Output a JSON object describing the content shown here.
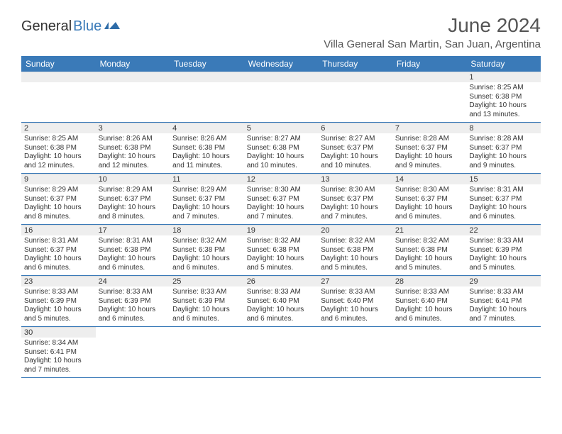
{
  "brand": {
    "general": "General",
    "blue": "Blue"
  },
  "title": "June 2024",
  "location": "Villa General San Martin, San Juan, Argentina",
  "colors": {
    "header_bg": "#3a7ab8",
    "header_fg": "#ffffff",
    "daynum_bg": "#eeeeee",
    "border": "#3a7ab8",
    "text": "#333333"
  },
  "day_labels": [
    "Sunday",
    "Monday",
    "Tuesday",
    "Wednesday",
    "Thursday",
    "Friday",
    "Saturday"
  ],
  "weeks": [
    [
      null,
      null,
      null,
      null,
      null,
      null,
      {
        "n": "1",
        "sr": "Sunrise: 8:25 AM",
        "ss": "Sunset: 6:38 PM",
        "dl": "Daylight: 10 hours and 13 minutes."
      }
    ],
    [
      {
        "n": "2",
        "sr": "Sunrise: 8:25 AM",
        "ss": "Sunset: 6:38 PM",
        "dl": "Daylight: 10 hours and 12 minutes."
      },
      {
        "n": "3",
        "sr": "Sunrise: 8:26 AM",
        "ss": "Sunset: 6:38 PM",
        "dl": "Daylight: 10 hours and 12 minutes."
      },
      {
        "n": "4",
        "sr": "Sunrise: 8:26 AM",
        "ss": "Sunset: 6:38 PM",
        "dl": "Daylight: 10 hours and 11 minutes."
      },
      {
        "n": "5",
        "sr": "Sunrise: 8:27 AM",
        "ss": "Sunset: 6:38 PM",
        "dl": "Daylight: 10 hours and 10 minutes."
      },
      {
        "n": "6",
        "sr": "Sunrise: 8:27 AM",
        "ss": "Sunset: 6:37 PM",
        "dl": "Daylight: 10 hours and 10 minutes."
      },
      {
        "n": "7",
        "sr": "Sunrise: 8:28 AM",
        "ss": "Sunset: 6:37 PM",
        "dl": "Daylight: 10 hours and 9 minutes."
      },
      {
        "n": "8",
        "sr": "Sunrise: 8:28 AM",
        "ss": "Sunset: 6:37 PM",
        "dl": "Daylight: 10 hours and 9 minutes."
      }
    ],
    [
      {
        "n": "9",
        "sr": "Sunrise: 8:29 AM",
        "ss": "Sunset: 6:37 PM",
        "dl": "Daylight: 10 hours and 8 minutes."
      },
      {
        "n": "10",
        "sr": "Sunrise: 8:29 AM",
        "ss": "Sunset: 6:37 PM",
        "dl": "Daylight: 10 hours and 8 minutes."
      },
      {
        "n": "11",
        "sr": "Sunrise: 8:29 AM",
        "ss": "Sunset: 6:37 PM",
        "dl": "Daylight: 10 hours and 7 minutes."
      },
      {
        "n": "12",
        "sr": "Sunrise: 8:30 AM",
        "ss": "Sunset: 6:37 PM",
        "dl": "Daylight: 10 hours and 7 minutes."
      },
      {
        "n": "13",
        "sr": "Sunrise: 8:30 AM",
        "ss": "Sunset: 6:37 PM",
        "dl": "Daylight: 10 hours and 7 minutes."
      },
      {
        "n": "14",
        "sr": "Sunrise: 8:30 AM",
        "ss": "Sunset: 6:37 PM",
        "dl": "Daylight: 10 hours and 6 minutes."
      },
      {
        "n": "15",
        "sr": "Sunrise: 8:31 AM",
        "ss": "Sunset: 6:37 PM",
        "dl": "Daylight: 10 hours and 6 minutes."
      }
    ],
    [
      {
        "n": "16",
        "sr": "Sunrise: 8:31 AM",
        "ss": "Sunset: 6:37 PM",
        "dl": "Daylight: 10 hours and 6 minutes."
      },
      {
        "n": "17",
        "sr": "Sunrise: 8:31 AM",
        "ss": "Sunset: 6:38 PM",
        "dl": "Daylight: 10 hours and 6 minutes."
      },
      {
        "n": "18",
        "sr": "Sunrise: 8:32 AM",
        "ss": "Sunset: 6:38 PM",
        "dl": "Daylight: 10 hours and 6 minutes."
      },
      {
        "n": "19",
        "sr": "Sunrise: 8:32 AM",
        "ss": "Sunset: 6:38 PM",
        "dl": "Daylight: 10 hours and 5 minutes."
      },
      {
        "n": "20",
        "sr": "Sunrise: 8:32 AM",
        "ss": "Sunset: 6:38 PM",
        "dl": "Daylight: 10 hours and 5 minutes."
      },
      {
        "n": "21",
        "sr": "Sunrise: 8:32 AM",
        "ss": "Sunset: 6:38 PM",
        "dl": "Daylight: 10 hours and 5 minutes."
      },
      {
        "n": "22",
        "sr": "Sunrise: 8:33 AM",
        "ss": "Sunset: 6:39 PM",
        "dl": "Daylight: 10 hours and 5 minutes."
      }
    ],
    [
      {
        "n": "23",
        "sr": "Sunrise: 8:33 AM",
        "ss": "Sunset: 6:39 PM",
        "dl": "Daylight: 10 hours and 5 minutes."
      },
      {
        "n": "24",
        "sr": "Sunrise: 8:33 AM",
        "ss": "Sunset: 6:39 PM",
        "dl": "Daylight: 10 hours and 6 minutes."
      },
      {
        "n": "25",
        "sr": "Sunrise: 8:33 AM",
        "ss": "Sunset: 6:39 PM",
        "dl": "Daylight: 10 hours and 6 minutes."
      },
      {
        "n": "26",
        "sr": "Sunrise: 8:33 AM",
        "ss": "Sunset: 6:40 PM",
        "dl": "Daylight: 10 hours and 6 minutes."
      },
      {
        "n": "27",
        "sr": "Sunrise: 8:33 AM",
        "ss": "Sunset: 6:40 PM",
        "dl": "Daylight: 10 hours and 6 minutes."
      },
      {
        "n": "28",
        "sr": "Sunrise: 8:33 AM",
        "ss": "Sunset: 6:40 PM",
        "dl": "Daylight: 10 hours and 6 minutes."
      },
      {
        "n": "29",
        "sr": "Sunrise: 8:33 AM",
        "ss": "Sunset: 6:41 PM",
        "dl": "Daylight: 10 hours and 7 minutes."
      }
    ],
    [
      {
        "n": "30",
        "sr": "Sunrise: 8:34 AM",
        "ss": "Sunset: 6:41 PM",
        "dl": "Daylight: 10 hours and 7 minutes."
      },
      null,
      null,
      null,
      null,
      null,
      null
    ]
  ]
}
